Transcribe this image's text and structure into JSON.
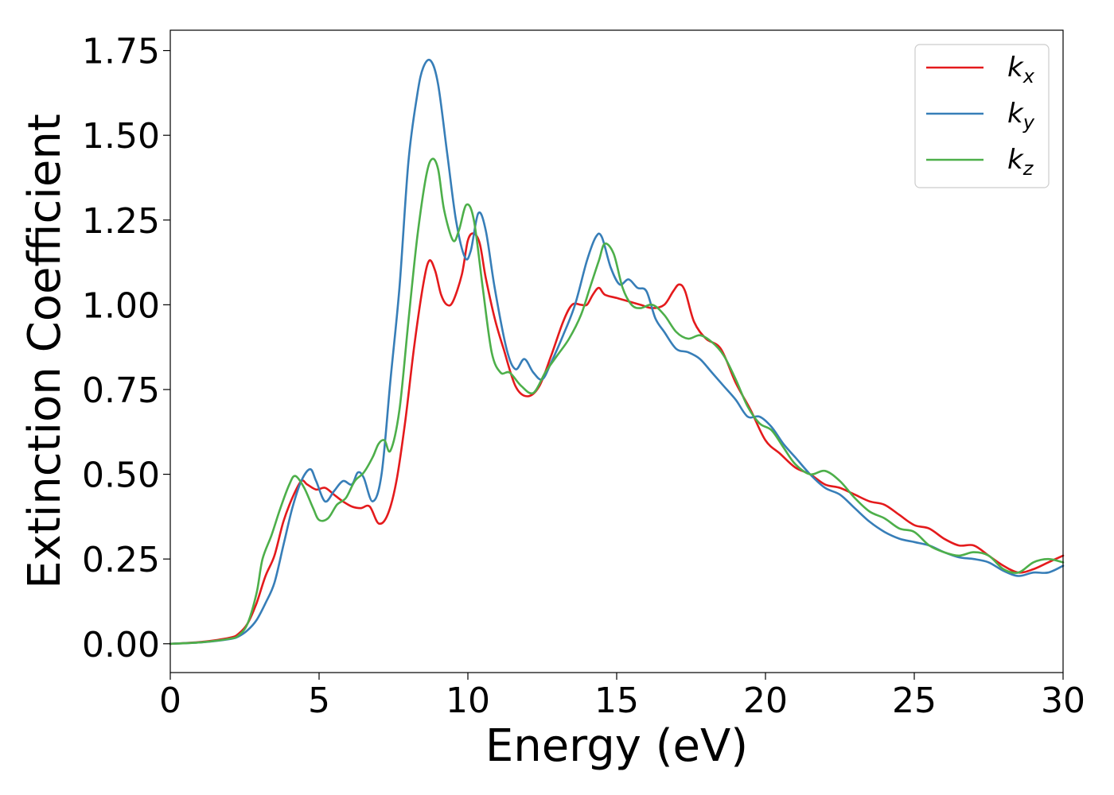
{
  "chart_data": {
    "type": "line",
    "title": "",
    "xlabel": "Energy (eV)",
    "ylabel": "Extinction Coefficient",
    "xlim": [
      0,
      30
    ],
    "ylim": [
      -0.085,
      1.81
    ],
    "xticks": [
      0,
      5,
      10,
      15,
      20,
      25,
      30
    ],
    "xtick_labels": [
      "0",
      "5",
      "10",
      "15",
      "20",
      "25",
      "30"
    ],
    "yticks": [
      0.0,
      0.25,
      0.5,
      0.75,
      1.0,
      1.25,
      1.5,
      1.75
    ],
    "ytick_labels": [
      "0.00",
      "0.25",
      "0.50",
      "0.75",
      "1.00",
      "1.25",
      "1.50",
      "1.75"
    ],
    "grid": false,
    "legend_position": "top-right",
    "series": [
      {
        "name": "k",
        "subscript": "x",
        "color": "#e41a1c",
        "x": [
          0,
          1,
          2,
          2.3,
          2.6,
          2.9,
          3.2,
          3.5,
          3.8,
          4.1,
          4.4,
          4.6,
          4.9,
          5.2,
          5.5,
          5.8,
          6.1,
          6.4,
          6.7,
          7.0,
          7.3,
          7.6,
          7.9,
          8.2,
          8.5,
          8.7,
          8.9,
          9.1,
          9.3,
          9.5,
          9.8,
          10.0,
          10.2,
          10.4,
          10.6,
          10.9,
          11.2,
          11.6,
          12.0,
          12.4,
          12.8,
          13.2,
          13.5,
          13.8,
          14.0,
          14.2,
          14.4,
          14.6,
          15.0,
          15.4,
          15.8,
          16.2,
          16.6,
          16.9,
          17.1,
          17.3,
          17.6,
          18.0,
          18.5,
          19.0,
          19.5,
          20.0,
          20.5,
          21.0,
          21.5,
          22.0,
          22.5,
          23.0,
          23.5,
          24.0,
          24.5,
          25.0,
          25.5,
          26.0,
          26.5,
          27.0,
          27.5,
          28.0,
          28.5,
          29.0,
          29.5,
          30.0
        ],
        "y": [
          0.0,
          0.005,
          0.018,
          0.03,
          0.06,
          0.12,
          0.2,
          0.26,
          0.36,
          0.43,
          0.48,
          0.47,
          0.455,
          0.46,
          0.44,
          0.42,
          0.405,
          0.4,
          0.405,
          0.355,
          0.38,
          0.48,
          0.66,
          0.88,
          1.06,
          1.13,
          1.1,
          1.03,
          1.0,
          1.01,
          1.09,
          1.19,
          1.21,
          1.18,
          1.08,
          0.96,
          0.87,
          0.76,
          0.73,
          0.76,
          0.85,
          0.95,
          1.0,
          1.0,
          1.0,
          1.03,
          1.05,
          1.03,
          1.02,
          1.01,
          1.0,
          0.99,
          1.0,
          1.04,
          1.06,
          1.04,
          0.95,
          0.9,
          0.87,
          0.77,
          0.69,
          0.6,
          0.56,
          0.52,
          0.5,
          0.47,
          0.46,
          0.44,
          0.42,
          0.41,
          0.38,
          0.35,
          0.34,
          0.31,
          0.29,
          0.29,
          0.26,
          0.23,
          0.21,
          0.22,
          0.24,
          0.26
        ]
      },
      {
        "name": "k",
        "subscript": "y",
        "color": "#377eb8",
        "x": [
          0,
          1,
          2,
          2.3,
          2.6,
          2.9,
          3.2,
          3.5,
          3.8,
          4.1,
          4.4,
          4.7,
          4.9,
          5.2,
          5.5,
          5.8,
          6.1,
          6.3,
          6.5,
          6.8,
          7.1,
          7.4,
          7.7,
          8.0,
          8.3,
          8.5,
          8.75,
          9.0,
          9.3,
          9.6,
          9.9,
          10.1,
          10.35,
          10.6,
          10.9,
          11.3,
          11.6,
          11.9,
          12.2,
          12.5,
          12.8,
          13.2,
          13.6,
          14.0,
          14.3,
          14.5,
          14.8,
          15.1,
          15.4,
          15.7,
          16.0,
          16.3,
          16.6,
          17.0,
          17.4,
          17.8,
          18.2,
          18.6,
          19.0,
          19.4,
          19.8,
          20.2,
          20.6,
          21.0,
          21.5,
          22.0,
          22.5,
          23.0,
          23.5,
          24.0,
          24.5,
          25.0,
          25.5,
          26.0,
          26.5,
          27.0,
          27.5,
          28.0,
          28.5,
          29.0,
          29.5,
          30.0
        ],
        "y": [
          0.0,
          0.004,
          0.014,
          0.022,
          0.04,
          0.07,
          0.12,
          0.18,
          0.29,
          0.4,
          0.48,
          0.515,
          0.48,
          0.42,
          0.45,
          0.48,
          0.47,
          0.505,
          0.49,
          0.42,
          0.5,
          0.78,
          1.05,
          1.42,
          1.62,
          1.7,
          1.72,
          1.65,
          1.45,
          1.25,
          1.14,
          1.16,
          1.27,
          1.22,
          1.05,
          0.87,
          0.81,
          0.84,
          0.8,
          0.78,
          0.83,
          0.91,
          1.0,
          1.13,
          1.2,
          1.2,
          1.11,
          1.06,
          1.075,
          1.05,
          1.04,
          0.96,
          0.92,
          0.87,
          0.86,
          0.84,
          0.8,
          0.76,
          0.72,
          0.67,
          0.67,
          0.64,
          0.59,
          0.55,
          0.5,
          0.46,
          0.44,
          0.4,
          0.36,
          0.33,
          0.31,
          0.3,
          0.29,
          0.27,
          0.255,
          0.25,
          0.24,
          0.215,
          0.2,
          0.21,
          0.21,
          0.23
        ]
      },
      {
        "name": "k",
        "subscript": "z",
        "color": "#4daf4a",
        "x": [
          0,
          1,
          2,
          2.3,
          2.6,
          2.9,
          3.1,
          3.4,
          3.7,
          4.0,
          4.2,
          4.5,
          4.8,
          5.0,
          5.3,
          5.6,
          5.9,
          6.2,
          6.5,
          6.8,
          7.0,
          7.2,
          7.4,
          7.7,
          8.0,
          8.3,
          8.6,
          8.8,
          9.0,
          9.2,
          9.5,
          9.7,
          9.95,
          10.2,
          10.5,
          10.8,
          11.1,
          11.4,
          11.8,
          12.2,
          12.6,
          13.0,
          13.4,
          13.8,
          14.1,
          14.4,
          14.6,
          14.9,
          15.2,
          15.5,
          15.8,
          16.2,
          16.6,
          17.0,
          17.4,
          17.8,
          18.2,
          18.6,
          19.0,
          19.4,
          19.8,
          20.2,
          20.6,
          21.0,
          21.5,
          22.0,
          22.5,
          23.0,
          23.5,
          24.0,
          24.5,
          25.0,
          25.5,
          26.0,
          26.5,
          27.0,
          27.5,
          28.0,
          28.5,
          29.0,
          29.5,
          30.0
        ],
        "y": [
          0.0,
          0.004,
          0.015,
          0.025,
          0.06,
          0.15,
          0.25,
          0.32,
          0.4,
          0.47,
          0.495,
          0.46,
          0.4,
          0.365,
          0.37,
          0.41,
          0.43,
          0.48,
          0.505,
          0.55,
          0.59,
          0.6,
          0.57,
          0.69,
          0.95,
          1.2,
          1.38,
          1.43,
          1.4,
          1.28,
          1.19,
          1.22,
          1.295,
          1.25,
          1.05,
          0.86,
          0.8,
          0.8,
          0.76,
          0.74,
          0.8,
          0.85,
          0.9,
          0.97,
          1.05,
          1.13,
          1.18,
          1.15,
          1.05,
          1.0,
          0.99,
          1.0,
          0.97,
          0.92,
          0.9,
          0.91,
          0.89,
          0.85,
          0.78,
          0.7,
          0.65,
          0.63,
          0.58,
          0.53,
          0.5,
          0.51,
          0.48,
          0.43,
          0.39,
          0.37,
          0.34,
          0.33,
          0.29,
          0.27,
          0.26,
          0.27,
          0.26,
          0.22,
          0.21,
          0.24,
          0.25,
          0.24
        ]
      }
    ]
  }
}
